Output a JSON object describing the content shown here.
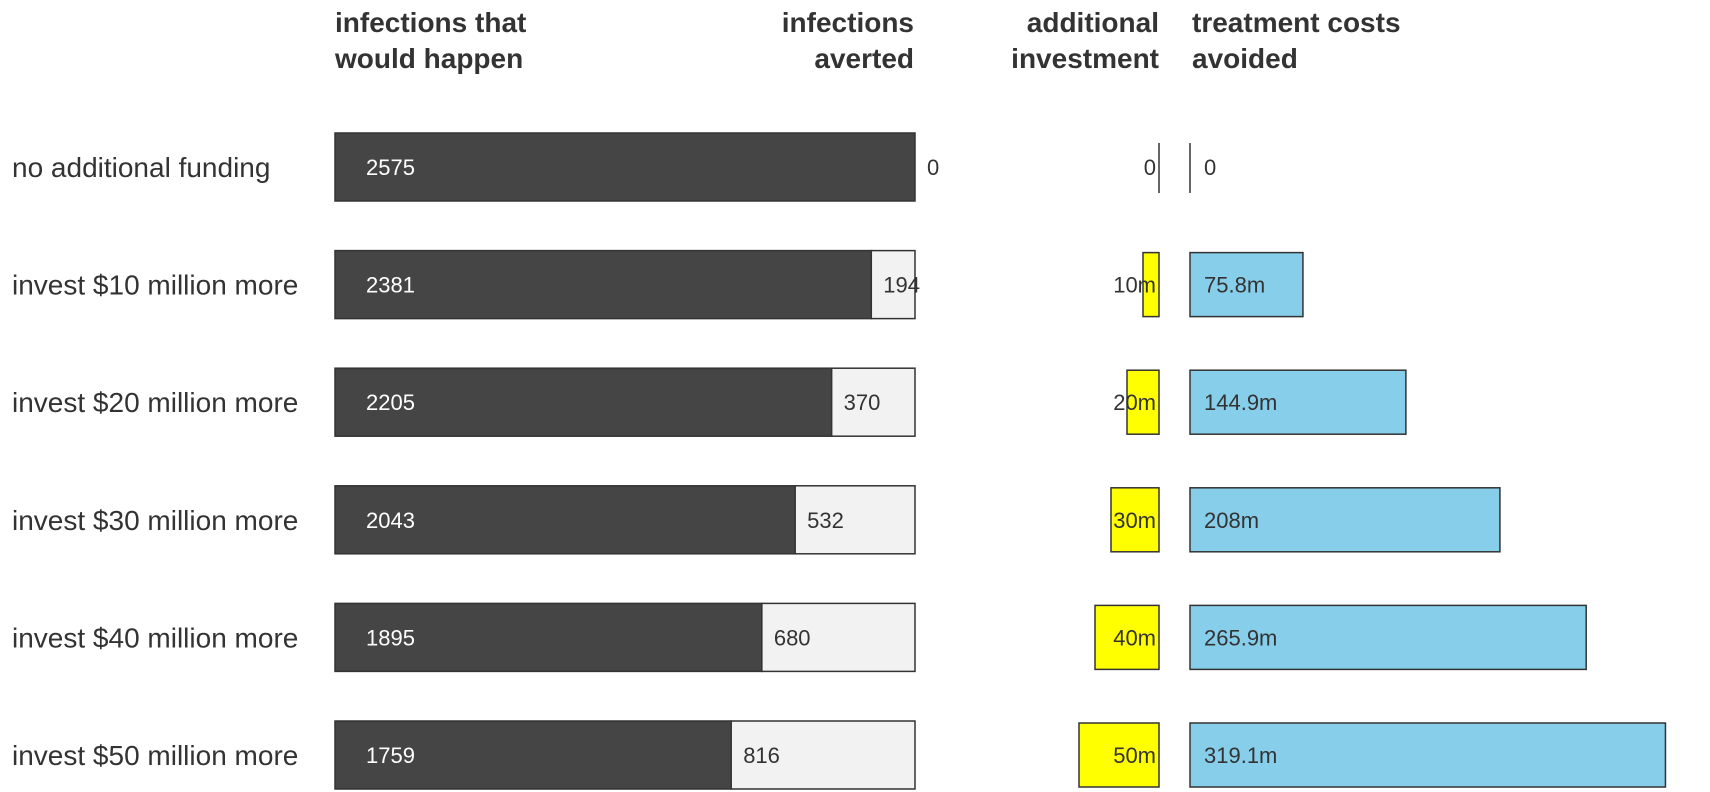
{
  "chart_data": {
    "type": "bar",
    "categories": [
      "no additional funding",
      "invest $10 million more",
      "invest $20 million more",
      "invest $30 million more",
      "invest $40 million more",
      "invest $50 million more"
    ],
    "headers": {
      "infections_happen": [
        "infections that",
        "would happen"
      ],
      "infections_averted": [
        "infections",
        "averted"
      ],
      "additional_investment": [
        "additional",
        "investment"
      ],
      "treatment_costs": [
        "treatment costs",
        "avoided"
      ]
    },
    "series": [
      {
        "key": "happen",
        "values": [
          2575,
          2381,
          2205,
          2043,
          1895,
          1759
        ],
        "labels": [
          "2575",
          "2381",
          "2205",
          "2043",
          "1895",
          "1759"
        ]
      },
      {
        "key": "averted",
        "values": [
          0,
          194,
          370,
          532,
          680,
          816
        ],
        "labels": [
          "0",
          "194",
          "370",
          "532",
          "680",
          "816"
        ]
      },
      {
        "key": "investment",
        "values": [
          0,
          10,
          20,
          30,
          40,
          50
        ],
        "labels": [
          "0",
          "10m",
          "20m",
          "30m",
          "40m",
          "50m"
        ]
      },
      {
        "key": "costs",
        "values": [
          0,
          75.8,
          144.9,
          208,
          265.9,
          319.1
        ],
        "labels": [
          "0",
          "75.8m",
          "144.9m",
          "208m",
          "265.9m",
          "319.1m"
        ]
      }
    ],
    "colors": {
      "happen": "#454545",
      "averted": "#f2f2f2",
      "investment": "#ffff00",
      "costs": "#87ceeb",
      "stroke": "#333333"
    }
  }
}
